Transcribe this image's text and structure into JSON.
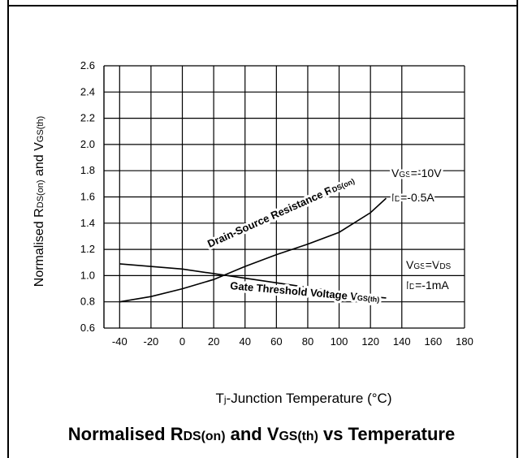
{
  "chart_data": {
    "type": "line",
    "title_parts": {
      "a": "Normalised R",
      "a_sub": "DS(on)",
      "b": " and V",
      "b_sub": "GS(th)",
      "c": " vs Temperature"
    },
    "xlabel_parts": {
      "a": "T",
      "a_sub": "j",
      "b": "-Junction Temperature (°C)"
    },
    "ylabel_parts": {
      "a": "Normalised R",
      "a_sub": "DS(on)",
      "b": " and V",
      "b_sub": "GS(th)"
    },
    "x_ticks": [
      -40,
      -20,
      0,
      20,
      40,
      60,
      80,
      100,
      120,
      140,
      160,
      180
    ],
    "y_ticks": [
      "0.6",
      "0.8",
      "1.0",
      "1.2",
      "1.4",
      "1.6",
      "1.8",
      "2.0",
      "2.2",
      "2.4",
      "2.6"
    ],
    "xlim": [
      -50,
      180
    ],
    "ylim": [
      0.6,
      2.6
    ],
    "grid": true,
    "series": [
      {
        "name": "Drain-Source Resistance RDS(on)",
        "label_parts": {
          "a": "Drain-Source Resistance R",
          "a_sub": "DS(on)"
        },
        "x": [
          -40,
          -20,
          0,
          20,
          40,
          60,
          80,
          100,
          120,
          130
        ],
        "y": [
          0.8,
          0.84,
          0.9,
          0.97,
          1.07,
          1.16,
          1.24,
          1.33,
          1.48,
          1.59
        ],
        "condition_lines": [
          {
            "a": "V",
            "a_sub": "GS",
            "b": "=-10V"
          },
          {
            "a": "I",
            "a_sub": "D",
            "b": "=-0.5A"
          }
        ]
      },
      {
        "name": "Gate Threshold Voltage VGS(th)",
        "label_parts": {
          "a": "Gate Threshold Voltage V",
          "a_sub": "GS(th)"
        },
        "x": [
          -40,
          0,
          40,
          80,
          120,
          130
        ],
        "y": [
          1.09,
          1.05,
          0.98,
          0.91,
          0.84,
          0.83
        ],
        "condition_lines": [
          {
            "a": "V",
            "a_sub": "GS",
            "b": "=V",
            "b_sub": "DS"
          },
          {
            "a": "I",
            "a_sub": "D",
            "b": "=-1mA"
          }
        ]
      }
    ]
  }
}
